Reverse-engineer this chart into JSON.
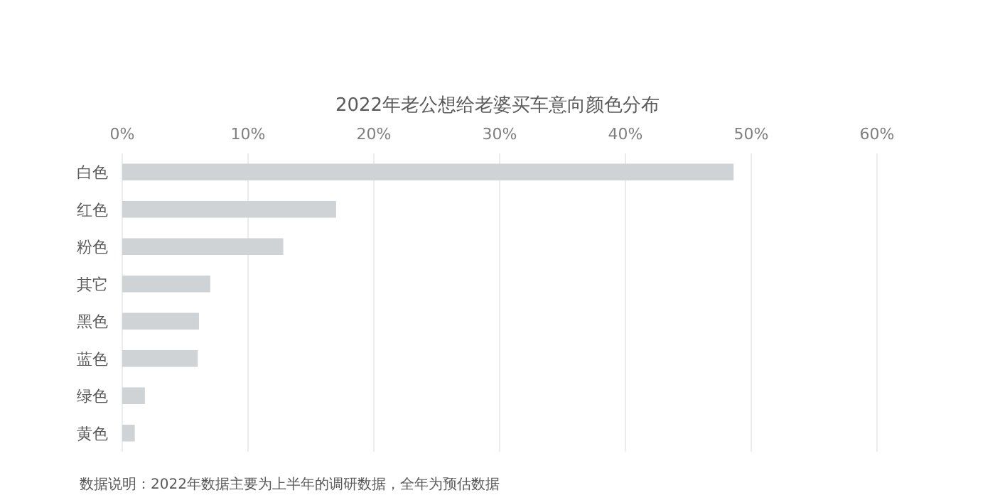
{
  "chart_data": {
    "type": "bar",
    "orientation": "horizontal",
    "title": "2022年老公想给老婆买车意向颜色分布",
    "categories": [
      "白色",
      "红色",
      "粉色",
      "其它",
      "黑色",
      "蓝色",
      "绿色",
      "黄色"
    ],
    "values": [
      48.6,
      17.0,
      12.8,
      7.0,
      6.1,
      6.0,
      1.8,
      1.0
    ],
    "color": "#d0d3d6",
    "xlim": [
      0,
      60
    ],
    "xticks": [
      {
        "value": 0,
        "label": "0%"
      },
      {
        "value": 10,
        "label": "10%"
      },
      {
        "value": 20,
        "label": "20%"
      },
      {
        "value": 30,
        "label": "30%"
      },
      {
        "value": 40,
        "label": "40%"
      },
      {
        "value": 50,
        "label": "50%"
      },
      {
        "value": 60,
        "label": "60%"
      }
    ],
    "grid": "x",
    "annotations": [
      "数据说明：2022年数据主要为上半年的调研数据，全年为预估数据"
    ]
  }
}
